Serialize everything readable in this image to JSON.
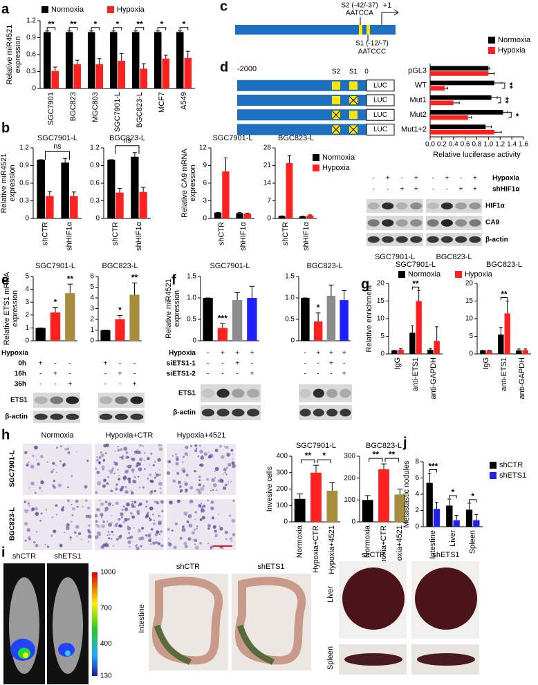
{
  "panels": [
    "a",
    "b",
    "c",
    "d",
    "e",
    "f",
    "g",
    "h",
    "i",
    "j"
  ],
  "promoter": {
    "s2": "S2 (-42/-37)",
    "s2_seq": "AATCCA",
    "s1": "S1 (-12/-7)",
    "s1_seq": "AATCCC",
    "tss": "+1"
  },
  "constructs": {
    "start": "-2000",
    "s2": "S2",
    "s1": "S1",
    "end": "0",
    "reporter": [
      "LUC",
      "LUC",
      "LUC",
      "LUC"
    ]
  },
  "blot_b": {
    "rows": [
      {
        "label": "Hypoxia",
        "signs": [
          "-",
          "+",
          "-",
          "+"
        ]
      },
      {
        "label": "shHIF1α",
        "signs": [
          "-",
          "-",
          "+",
          "+"
        ]
      }
    ],
    "bands": [
      "HIF1α",
      "CA9",
      "β-actin"
    ],
    "cells": [
      "SGC7901-L",
      "BGC823-L"
    ]
  },
  "blot_e": {
    "header": "Hypoxia",
    "rows": [
      {
        "label": "0h",
        "signs": [
          "+",
          "-",
          "-"
        ]
      },
      {
        "label": "16h",
        "signs": [
          "-",
          "+",
          "-"
        ]
      },
      {
        "label": "36h",
        "signs": [
          "-",
          "-",
          "+"
        ]
      }
    ],
    "bands": [
      "ETS1",
      "β-actin"
    ]
  },
  "blot_f": {
    "rows": [
      {
        "label": "Hypoxia",
        "signs": [
          "-",
          "+",
          "+",
          "+"
        ]
      },
      {
        "label": "siETS1-1",
        "signs": [
          "-",
          "-",
          "+",
          "-"
        ]
      },
      {
        "label": "siETS1-2",
        "signs": [
          "-",
          "-",
          "-",
          "+"
        ]
      }
    ],
    "bands": [
      "ETS1",
      "β-actin"
    ]
  },
  "invasion_images": {
    "columns": [
      "Normoxia",
      "Hypoxia+CTR",
      "Hypoxia+4521"
    ],
    "rows": [
      "SGC7901-L",
      "BGC823-L"
    ]
  },
  "imaging": {
    "mice": [
      "shCTR",
      "shETS1"
    ],
    "colorbar": [
      1000,
      700,
      400,
      130
    ],
    "intestine": {
      "organ": "Intestine",
      "groups": [
        "shCTR",
        "shETS1"
      ]
    },
    "liver": {
      "organs": [
        "Liver",
        "Spleen"
      ],
      "groups": [
        "shCTR",
        "shETS1"
      ]
    }
  },
  "chart_data": [
    {
      "type": "bar",
      "ylabel": [
        "Relative miR4521",
        "expression"
      ],
      "categories": [
        "SGC7901",
        "BGC823",
        "MGC803",
        "SGC7901-L",
        "BGC823-L",
        "MCF7",
        "A549"
      ],
      "series": [
        {
          "name": "Normoxia",
          "color": "#000000",
          "values": [
            1,
            1,
            1,
            1,
            1,
            1,
            1
          ],
          "errors": [
            0.02,
            0.02,
            0.02,
            0.02,
            0.02,
            0.02,
            0.02
          ]
        },
        {
          "name": "Hypoxia",
          "color": "#ff2020",
          "values": [
            0.31,
            0.43,
            0.43,
            0.49,
            0.35,
            0.53,
            0.54
          ],
          "errors": [
            0.07,
            0.07,
            0.1,
            0.13,
            0.09,
            0.06,
            0.12
          ]
        }
      ],
      "ylim": [
        0,
        1.2
      ],
      "yticks": [
        0,
        0.3,
        0.6,
        0.9,
        1.2
      ],
      "annotations": [
        "**",
        "**",
        "*",
        "*",
        "**",
        "*",
        "*"
      ]
    },
    {
      "type": "bar",
      "title": "SGC7901-L",
      "ylabel": [
        "Relative miR4521",
        "expression"
      ],
      "categories": [
        "shCTR",
        "shHIF1α"
      ],
      "series": [
        {
          "color": "#000000",
          "values": [
            1,
            0.95
          ],
          "errors": [
            0,
            0.07
          ]
        },
        {
          "color": "#ff2020",
          "values": [
            0.38,
            0.38
          ],
          "errors": [
            0.08,
            0.07
          ]
        }
      ],
      "ylim": [
        0,
        1.2
      ],
      "yticks": [
        0,
        0.3,
        0.6,
        0.9,
        1.2
      ],
      "comparison": "ns"
    },
    {
      "type": "bar",
      "title": "BGC823-L",
      "categories": [
        "shCTR",
        "shHIF1α"
      ],
      "series": [
        {
          "color": "#000000",
          "values": [
            1,
            1.05
          ],
          "errors": [
            0,
            0.07
          ]
        },
        {
          "color": "#ff2020",
          "values": [
            0.44,
            0.45
          ],
          "errors": [
            0.07,
            0.08
          ]
        }
      ],
      "ylim": [
        0,
        1.2
      ],
      "yticks": [
        0,
        0.3,
        0.6,
        0.9,
        1.2
      ],
      "comparison": "ns"
    },
    {
      "type": "bar",
      "title": "SGC7901-L",
      "ylabel": [
        "Relative CA9 mRNA",
        "expression"
      ],
      "categories": [
        "shCTR",
        "shHIF1α"
      ],
      "series": [
        {
          "color": "#000000",
          "values": [
            1,
            0.9
          ],
          "errors": [
            0,
            0.1
          ]
        },
        {
          "color": "#ff2020",
          "values": [
            8,
            0.8
          ],
          "errors": [
            2.3,
            0.1
          ]
        }
      ],
      "ylim": [
        0,
        12
      ],
      "yticks": [
        0,
        3,
        6,
        9,
        12
      ]
    },
    {
      "type": "bar",
      "title": "BGC823-L",
      "categories": [
        "shCTR",
        "shHIF1α"
      ],
      "series": [
        {
          "name": "Normoxia",
          "color": "#000000",
          "values": [
            1,
            0.8
          ],
          "errors": [
            0,
            0.1
          ]
        },
        {
          "name": "Hypoxia",
          "color": "#ff2020",
          "values": [
            22,
            1.2
          ],
          "errors": [
            3,
            0.2
          ]
        }
      ],
      "ylim": [
        0,
        28
      ],
      "yticks": [
        0,
        7,
        14,
        21,
        28
      ]
    },
    {
      "type": "hbar",
      "categories": [
        "pGL3",
        "WT",
        "Mut1",
        "Mut2",
        "Mut1+2"
      ],
      "series": [
        {
          "name": "Normoxia",
          "color": "#000000",
          "values": [
            1,
            1.1,
            1.05,
            1.25,
            0.95
          ],
          "errors": [
            0.02,
            0.12,
            0.1,
            0.08,
            0.1
          ]
        },
        {
          "name": "Hypoxia",
          "color": "#ff2020",
          "values": [
            1,
            0.25,
            0.4,
            0.65,
            1.1
          ],
          "errors": [
            0.1,
            0.05,
            0.1,
            0.06,
            0.12
          ]
        }
      ],
      "xlabel": "Relative luciferase activity",
      "xlim": [
        0,
        1.6
      ],
      "xticks": [
        {
          "value": 0,
          "label": "0.0"
        },
        0.2,
        0.4,
        0.6,
        0.8,
        {
          "value": 1,
          "label": "1.0"
        },
        1.2,
        1.4,
        1.6
      ],
      "annotations": [
        null,
        "**",
        "**",
        "*",
        null
      ]
    },
    {
      "type": "bar",
      "title": "SGC7901-L",
      "ylabel": [
        "Relative ETS1 mRNA",
        "expression"
      ],
      "values": [
        1,
        2.2,
        3.7
      ],
      "errors": [
        0,
        0.4,
        0.7
      ],
      "colors": [
        "#000000",
        "#ff2020",
        "#a88d3e"
      ],
      "ylim": [
        0,
        5
      ],
      "yticks": [
        0,
        1,
        2,
        3,
        4,
        5
      ],
      "annotations": [
        null,
        "*",
        "**"
      ]
    },
    {
      "type": "bar",
      "title": "BGC823-L",
      "values": [
        1,
        2,
        4.3
      ],
      "errors": [
        0,
        0.35,
        1.1
      ],
      "colors": [
        "#000000",
        "#ff2020",
        "#a88d3e"
      ],
      "ylim": [
        0,
        6
      ],
      "yticks": [
        0,
        1,
        2,
        3,
        4,
        5,
        6
      ],
      "annotations": [
        null,
        "*",
        "**"
      ]
    },
    {
      "type": "bar",
      "title": "SGC7901-L",
      "ylabel": [
        "Relative miR4521",
        "expression"
      ],
      "values": [
        1,
        0.3,
        0.95,
        1
      ],
      "errors": [
        0,
        0.1,
        0.17,
        0.27
      ],
      "colors": [
        "#000000",
        "#ff2020",
        "#8c8c8c",
        "#1e1eff"
      ],
      "ylim": [
        0,
        1.5
      ],
      "yticks": [
        0,
        0.5,
        {
          "value": 1,
          "label": "1.0"
        },
        1.5
      ],
      "annotations": [
        null,
        "***",
        null,
        null
      ]
    },
    {
      "type": "bar",
      "title": "BGC823-L",
      "values": [
        1,
        0.45,
        1.05,
        0.95
      ],
      "errors": [
        0,
        0.2,
        0.25,
        0.22
      ],
      "colors": [
        "#000000",
        "#ff2020",
        "#8c8c8c",
        "#1e1eff"
      ],
      "ylim": [
        0,
        1.5
      ],
      "yticks": [
        0,
        0.5,
        {
          "value": 1,
          "label": "1.0"
        },
        1.5
      ],
      "annotations": [
        null,
        "*",
        null,
        null
      ]
    },
    {
      "type": "bar",
      "title": "SGC7901-L",
      "ylabel": [
        "Relative enrichment"
      ],
      "categories": [
        "IgG",
        "anti-ETS1",
        "anti-GAPDH"
      ],
      "series": [
        {
          "name": "Normoxia",
          "color": "#000000",
          "values": [
            1,
            6,
            1.2
          ],
          "errors": [
            0,
            2,
            0.3
          ]
        },
        {
          "name": "Hypoxia",
          "color": "#ff2020",
          "values": [
            1.2,
            15,
            3.7
          ],
          "errors": [
            0.3,
            3,
            4
          ]
        }
      ],
      "ylim": [
        0,
        20
      ],
      "yticks": [
        0,
        5,
        10,
        15,
        20
      ],
      "annotations": [
        null,
        "**",
        null
      ]
    },
    {
      "type": "bar",
      "title": "BGC823-L",
      "categories": [
        "IgG",
        "anti-ETS1",
        "anti-GAPDH"
      ],
      "series": [
        {
          "color": "#000000",
          "values": [
            1,
            5.5,
            1
          ],
          "errors": [
            0,
            2,
            0.4
          ]
        },
        {
          "color": "#ff2020",
          "values": [
            1,
            11.5,
            1.1
          ],
          "errors": [
            0,
            3.5,
            0.3
          ]
        }
      ],
      "ylim": [
        0,
        20
      ],
      "yticks": [
        0,
        5,
        10,
        15,
        20
      ],
      "annotations": [
        null,
        "**",
        null
      ]
    },
    {
      "type": "bar",
      "title": "SGC7901-L",
      "ylabel": [
        "Invesive cells"
      ],
      "categories": [
        "Normoxia",
        "Hypoxia+CTR",
        "Hypoxia+4521"
      ],
      "values": [
        140,
        300,
        190
      ],
      "errors": [
        30,
        45,
        50
      ],
      "colors": [
        "#000000",
        "#ff2020",
        "#a88d3e"
      ],
      "ylim": [
        0,
        400
      ],
      "yticks": [
        0,
        100,
        200,
        300,
        400
      ],
      "comparisons": [
        "**",
        "*"
      ]
    },
    {
      "type": "bar",
      "title": "BGC823-L",
      "categories": [
        "Normoxia",
        "Hypoxia+CTR",
        "Hypoxia+4521"
      ],
      "values": [
        100,
        240,
        125
      ],
      "errors": [
        20,
        25,
        25
      ],
      "colors": [
        "#000000",
        "#ff2020",
        "#a88d3e"
      ],
      "ylim": [
        0,
        300
      ],
      "yticks": [
        0,
        100,
        200,
        300
      ],
      "comparisons": [
        "**",
        "**"
      ]
    },
    {
      "type": "bar",
      "ylabel": [
        "Metastastic nodules"
      ],
      "categories": [
        "Intestine",
        "Liver",
        "Spleen"
      ],
      "series": [
        {
          "name": "shCTR",
          "color": "#000000",
          "values": [
            5.4,
            2.6,
            2.1
          ],
          "errors": [
            1.2,
            0.8,
            0.8
          ]
        },
        {
          "name": "shETS1",
          "color": "#2222ee",
          "values": [
            2.2,
            0.8,
            0.8
          ],
          "errors": [
            0.8,
            0.6,
            0.7
          ]
        }
      ],
      "ylim": [
        0,
        8
      ],
      "yticks": [
        0,
        2,
        4,
        6,
        8
      ],
      "annotations": [
        "***",
        "*",
        "*"
      ]
    }
  ]
}
